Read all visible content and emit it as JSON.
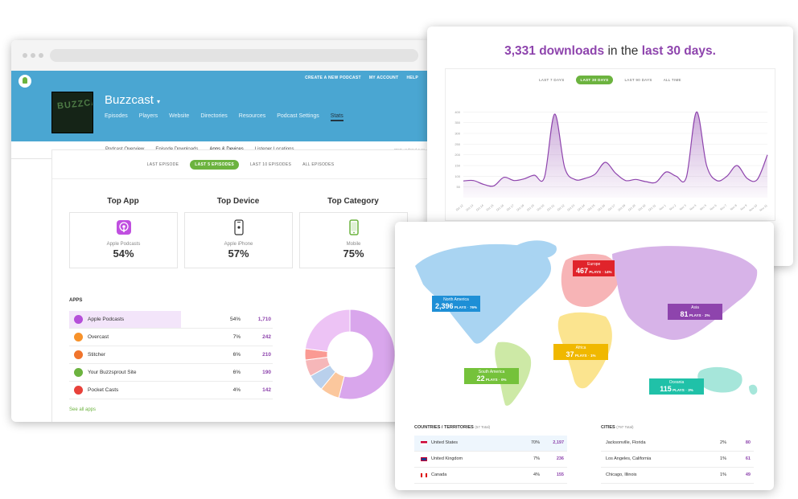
{
  "top_links": [
    "CREATE A NEW PODCAST",
    "MY ACCOUNT",
    "HELP"
  ],
  "podcast": {
    "title": "Buzzcast",
    "title_caret": "▾",
    "cover_text": "BUZZCAST",
    "nav": [
      "Episodes",
      "Players",
      "Website",
      "Directories",
      "Resources",
      "Podcast Settings",
      "Stats"
    ],
    "subnav": [
      "Podcast Overview",
      "Episode Downloads",
      "Apps & Devices",
      "Listener Locations"
    ],
    "stats_updated": "Stats updated ever"
  },
  "range_tabs": [
    "LAST EPISODE",
    "LAST 5 EPISODES",
    "LAST 10 EPISODES",
    "ALL EPISODES"
  ],
  "top_cards": [
    {
      "heading": "Top App",
      "label": "Apple Podcasts",
      "value": "54%",
      "icon": "podcast-app-icon"
    },
    {
      "heading": "Top Device",
      "label": "Apple iPhone",
      "value": "57%",
      "icon": "iphone-icon"
    },
    {
      "heading": "Top Category",
      "label": "Mobile",
      "value": "75%",
      "icon": "mobile-icon"
    }
  ],
  "apps": {
    "title": "APPS",
    "see_all": "See all apps",
    "rows": [
      {
        "name": "Apple Podcasts",
        "pct": "54%",
        "count": "1,710",
        "color": "#b54fd9"
      },
      {
        "name": "Overcast",
        "pct": "7%",
        "count": "242",
        "color": "#f7922a"
      },
      {
        "name": "Stitcher",
        "pct": "6%",
        "count": "210",
        "color": "#f0742c"
      },
      {
        "name": "Your Buzzsprout Site",
        "pct": "6%",
        "count": "190",
        "color": "#6cb33f"
      },
      {
        "name": "Pocket Casts",
        "pct": "4%",
        "count": "142",
        "color": "#e8413a"
      }
    ]
  },
  "donut": {
    "slices": [
      {
        "label": "Apple Podcasts",
        "value": 54,
        "color": "#d9a6ec"
      },
      {
        "label": "Overcast",
        "value": 7,
        "color": "#fbc79d"
      },
      {
        "label": "Stitcher",
        "value": 6,
        "color": "#b9d0ec"
      },
      {
        "label": "Your Buzzsprout Site",
        "value": 6,
        "color": "#f6b7b9"
      },
      {
        "label": "Pocket Casts",
        "value": 4,
        "color": "#fa9a93"
      },
      {
        "label": "Other",
        "value": 23,
        "color": "#edc3f5"
      }
    ]
  },
  "downloads": {
    "count": "3,331 downloads",
    "mid": "in the",
    "period": "last 30 days.",
    "tabs": [
      "LAST 7 DAYS",
      "LAST 30 DAYS",
      "LAST 90 DAYS",
      "ALL TIME"
    ],
    "y_ticks": [
      "400",
      "350",
      "300",
      "250",
      "200",
      "150",
      "100",
      "50"
    ]
  },
  "chart_data": {
    "type": "area",
    "title": "",
    "xlabel": "",
    "ylabel": "",
    "ylim": [
      0,
      420
    ],
    "x": [
      "Oct 12",
      "Oct 13",
      "Oct 14",
      "Oct 15",
      "Oct 16",
      "Oct 17",
      "Oct 18",
      "Oct 19",
      "Oct 20",
      "Oct 21",
      "Oct 22",
      "Oct 23",
      "Oct 24",
      "Oct 25",
      "Oct 26",
      "Oct 27",
      "Oct 28",
      "Oct 29",
      "Oct 30",
      "Oct 31",
      "Nov 1",
      "Nov 2",
      "Nov 3",
      "Nov 4",
      "Nov 5",
      "Nov 6",
      "Nov 7",
      "Nov 8",
      "Nov 9",
      "Nov 10",
      "Nov 11"
    ],
    "values": [
      78,
      80,
      62,
      55,
      95,
      80,
      88,
      105,
      95,
      390,
      140,
      85,
      90,
      110,
      165,
      115,
      80,
      85,
      75,
      72,
      120,
      100,
      95,
      400,
      150,
      80,
      100,
      150,
      90,
      85,
      200
    ],
    "color": "#8e44ad"
  },
  "map": {
    "regions": [
      {
        "name": "North America",
        "count": "2,396",
        "unit": "PLAYS",
        "pct": "76%",
        "color": "#1e8fd6"
      },
      {
        "name": "Europe",
        "count": "467",
        "unit": "PLAYS",
        "pct": "14%",
        "color": "#e0242b"
      },
      {
        "name": "Asia",
        "count": "81",
        "unit": "PLAYS",
        "pct": "2%",
        "color": "#8e44ad"
      },
      {
        "name": "Africa",
        "count": "37",
        "unit": "PLAYS",
        "pct": "1%",
        "color": "#f0b800"
      },
      {
        "name": "South America",
        "count": "22",
        "unit": "PLAYS",
        "pct": "0%",
        "color": "#75c23b"
      },
      {
        "name": "Oceania",
        "count": "115",
        "unit": "PLAYS",
        "pct": "3%",
        "color": "#20c1a8"
      }
    ],
    "countries_title": "COUNTRIES / TERRITORIES",
    "countries_total": "(57 Total)",
    "countries": [
      {
        "name": "United States",
        "pct": "70%",
        "count": "2,197"
      },
      {
        "name": "United Kingdom",
        "pct": "7%",
        "count": "236"
      },
      {
        "name": "Canada",
        "pct": "4%",
        "count": "155"
      }
    ],
    "cities_title": "CITIES",
    "cities_total": "(797 Total)",
    "cities": [
      {
        "name": "Jacksonville, Florida",
        "pct": "2%",
        "count": "80"
      },
      {
        "name": "Los Angeles, California",
        "pct": "1%",
        "count": "61"
      },
      {
        "name": "Chicago, Illinois",
        "pct": "1%",
        "count": "49"
      }
    ]
  }
}
